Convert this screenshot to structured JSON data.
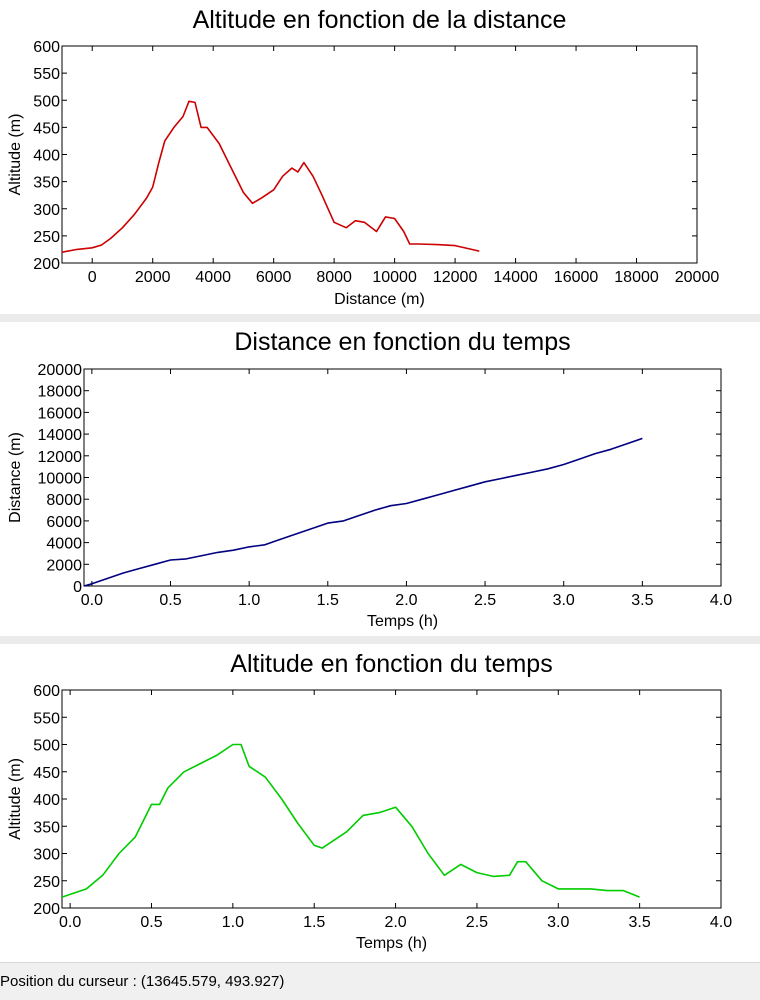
{
  "chart_data": [
    {
      "type": "line",
      "title": "Altitude en fonction de la distance",
      "xlabel": "Distance (m)",
      "ylabel": "Altitude (m)",
      "xlim": [
        -1000,
        20000
      ],
      "ylim": [
        200,
        600
      ],
      "xticks": [
        0,
        2000,
        4000,
        6000,
        8000,
        10000,
        12000,
        14000,
        16000,
        18000,
        20000
      ],
      "yticks": [
        200,
        250,
        300,
        350,
        400,
        450,
        500,
        550,
        600
      ],
      "xtick_labels": [
        "0",
        "2000",
        "4000",
        "6000",
        "8000",
        "10000",
        "12000",
        "14000",
        "16000",
        "18000",
        "20000"
      ],
      "ytick_labels": [
        "200",
        "250",
        "300",
        "350",
        "400",
        "450",
        "500",
        "550",
        "600"
      ],
      "grid": false,
      "series": [
        {
          "color": "#cc0000",
          "x": [
            -1000,
            -500,
            0,
            300,
            600,
            1000,
            1400,
            1800,
            2000,
            2200,
            2400,
            2700,
            3000,
            3200,
            3400,
            3600,
            3800,
            4200,
            4600,
            5000,
            5300,
            5600,
            6000,
            6300,
            6600,
            6800,
            7000,
            7300,
            7600,
            8000,
            8400,
            8700,
            9000,
            9400,
            9700,
            10000,
            10300,
            10500,
            10800,
            11400,
            12000,
            12800
          ],
          "y": [
            220,
            225,
            228,
            233,
            245,
            265,
            290,
            320,
            340,
            385,
            425,
            450,
            470,
            498,
            496,
            450,
            450,
            420,
            375,
            330,
            310,
            320,
            335,
            360,
            375,
            368,
            385,
            360,
            325,
            275,
            265,
            278,
            275,
            258,
            285,
            282,
            258,
            235,
            235,
            234,
            232,
            222
          ]
        }
      ]
    },
    {
      "type": "line",
      "title": "Distance en fonction du temps",
      "xlabel": "Temps (h)",
      "ylabel": "Distance (m)",
      "xlim": [
        -0.05,
        4.0
      ],
      "ylim": [
        0,
        20000
      ],
      "xticks": [
        0.0,
        0.5,
        1.0,
        1.5,
        2.0,
        2.5,
        3.0,
        3.5,
        4.0
      ],
      "yticks": [
        0,
        2000,
        4000,
        6000,
        8000,
        10000,
        12000,
        14000,
        16000,
        18000,
        20000
      ],
      "xtick_labels": [
        "0.0",
        "0.5",
        "1.0",
        "1.5",
        "2.0",
        "2.5",
        "3.0",
        "3.5",
        "4.0"
      ],
      "ytick_labels": [
        "0",
        "2000",
        "4000",
        "6000",
        "8000",
        "10000",
        "12000",
        "14000",
        "16000",
        "18000",
        "20000"
      ],
      "grid": false,
      "series": [
        {
          "color": "#000080",
          "x": [
            -0.05,
            0.0,
            0.1,
            0.2,
            0.3,
            0.4,
            0.5,
            0.6,
            0.7,
            0.8,
            0.9,
            1.0,
            1.1,
            1.2,
            1.3,
            1.4,
            1.5,
            1.6,
            1.7,
            1.8,
            1.9,
            2.0,
            2.1,
            2.2,
            2.3,
            2.4,
            2.5,
            2.6,
            2.7,
            2.8,
            2.9,
            3.0,
            3.1,
            3.2,
            3.3,
            3.4,
            3.5
          ],
          "y": [
            0,
            200,
            700,
            1200,
            1600,
            2000,
            2400,
            2500,
            2800,
            3100,
            3300,
            3600,
            3800,
            4300,
            4800,
            5300,
            5800,
            6000,
            6500,
            7000,
            7400,
            7600,
            8000,
            8400,
            8800,
            9200,
            9600,
            9900,
            10200,
            10500,
            10800,
            11200,
            11700,
            12200,
            12600,
            13100,
            13600
          ]
        }
      ]
    },
    {
      "type": "line",
      "title": "Altitude en fonction du temps",
      "xlabel": "Temps (h)",
      "ylabel": "Altitude (m)",
      "xlim": [
        -0.05,
        4.0
      ],
      "ylim": [
        200,
        600
      ],
      "xticks": [
        0.0,
        0.5,
        1.0,
        1.5,
        2.0,
        2.5,
        3.0,
        3.5,
        4.0
      ],
      "yticks": [
        200,
        250,
        300,
        350,
        400,
        450,
        500,
        550,
        600
      ],
      "xtick_labels": [
        "0.0",
        "0.5",
        "1.0",
        "1.5",
        "2.0",
        "2.5",
        "3.0",
        "3.5",
        "4.0"
      ],
      "ytick_labels": [
        "200",
        "250",
        "300",
        "350",
        "400",
        "450",
        "500",
        "550",
        "600"
      ],
      "grid": false,
      "series": [
        {
          "color": "#00cc00",
          "x": [
            -0.05,
            0.0,
            0.1,
            0.2,
            0.3,
            0.4,
            0.5,
            0.55,
            0.6,
            0.7,
            0.8,
            0.9,
            1.0,
            1.05,
            1.1,
            1.2,
            1.3,
            1.4,
            1.5,
            1.55,
            1.6,
            1.7,
            1.8,
            1.9,
            2.0,
            2.1,
            2.2,
            2.3,
            2.4,
            2.5,
            2.6,
            2.7,
            2.75,
            2.8,
            2.9,
            3.0,
            3.1,
            3.2,
            3.3,
            3.4,
            3.5
          ],
          "y": [
            220,
            225,
            235,
            260,
            300,
            330,
            390,
            390,
            420,
            450,
            465,
            480,
            500,
            500,
            460,
            440,
            400,
            355,
            315,
            310,
            320,
            340,
            370,
            375,
            385,
            350,
            300,
            260,
            280,
            265,
            258,
            260,
            285,
            285,
            250,
            235,
            235,
            235,
            232,
            232,
            220
          ]
        }
      ]
    }
  ],
  "status_bar": {
    "label": "Position du curseur : (13645.579, 493.927)"
  }
}
